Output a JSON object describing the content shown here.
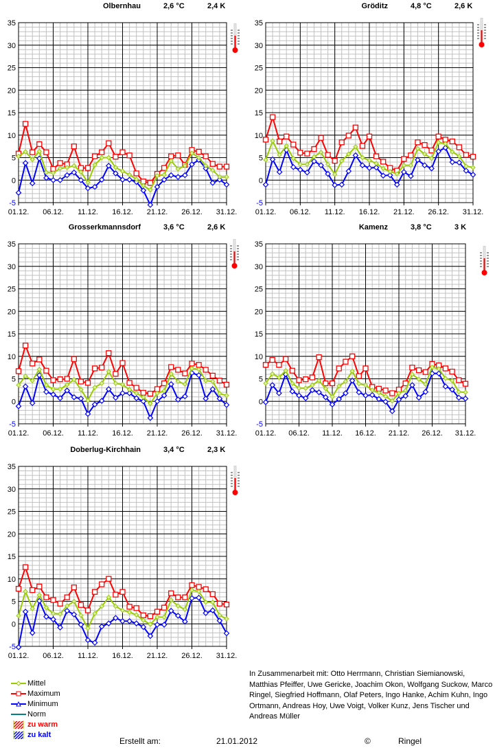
{
  "chart_data": [
    {
      "type": "line",
      "title": "Olbernhau",
      "mean_temp": "2,6 °C",
      "anomaly": "2,4 K",
      "x": [
        "01.12.",
        "02.12.",
        "03.12.",
        "04.12.",
        "05.12.",
        "06.12.",
        "07.12.",
        "08.12.",
        "09.12.",
        "10.12.",
        "11.12.",
        "12.12.",
        "13.12.",
        "14.12.",
        "15.12.",
        "16.12.",
        "17.12.",
        "18.12.",
        "19.12.",
        "20.12.",
        "21.12.",
        "22.12.",
        "23.12.",
        "24.12.",
        "25.12.",
        "26.12.",
        "27.12.",
        "28.12.",
        "29.12.",
        "30.12.",
        "31.12."
      ],
      "xticks": [
        "01.12.",
        "06.12.",
        "11.12.",
        "16.12.",
        "21.12.",
        "26.12.",
        "31.12."
      ],
      "yticks": [
        -5,
        0,
        5,
        10,
        15,
        20,
        25,
        30,
        35
      ],
      "ylim": [
        -5,
        35
      ],
      "grid": true,
      "series": [
        {
          "name": "Maximum",
          "values": [
            5.9,
            12.5,
            6.2,
            8.0,
            6.2,
            2.5,
            3.8,
            3.5,
            7.5,
            2.7,
            2.7,
            5.3,
            6.2,
            8.2,
            5.2,
            6.2,
            5.5,
            1.5,
            -0.3,
            -0.6,
            1.4,
            2.7,
            5.3,
            5.5,
            3.4,
            6.7,
            6.3,
            5.3,
            3.6,
            3.0,
            3.0
          ]
        },
        {
          "name": "Mittel",
          "values": [
            5.3,
            6.3,
            4.6,
            6.4,
            1.7,
            1.6,
            2.6,
            2.8,
            3.2,
            1.8,
            -0.5,
            3.4,
            5.0,
            5.0,
            2.8,
            2.0,
            1.2,
            0.2,
            -1.2,
            -2.2,
            1.0,
            1.2,
            4.3,
            2.5,
            3.2,
            6.0,
            5.0,
            3.2,
            2.2,
            0.7,
            0.7
          ]
        },
        {
          "name": "Minimum",
          "values": [
            -2.8,
            3.8,
            -0.7,
            4.8,
            0.5,
            0.0,
            0.0,
            1.1,
            1.7,
            0.0,
            -1.8,
            -1.5,
            0.1,
            3.2,
            1.5,
            0.1,
            0.1,
            -0.4,
            -2.3,
            -5.5,
            -1.5,
            0.1,
            1.1,
            0.7,
            1.1,
            3.5,
            4.5,
            2.6,
            -0.6,
            0.1,
            -1.0
          ]
        }
      ]
    },
    {
      "type": "line",
      "title": "Gröditz",
      "mean_temp": "4,8 °C",
      "anomaly": "2,6 K",
      "x": [
        "01.12.",
        "02.12.",
        "03.12.",
        "04.12.",
        "05.12.",
        "06.12.",
        "07.12.",
        "08.12.",
        "09.12.",
        "10.12.",
        "11.12.",
        "12.12.",
        "13.12.",
        "14.12.",
        "15.12.",
        "16.12.",
        "17.12.",
        "18.12.",
        "19.12.",
        "20.12.",
        "21.12.",
        "22.12.",
        "23.12.",
        "24.12.",
        "25.12.",
        "26.12.",
        "27.12.",
        "28.12.",
        "29.12.",
        "30.12.",
        "31.12."
      ],
      "xticks": [
        "01.12.",
        "06.12.",
        "11.12.",
        "16.12.",
        "21.12.",
        "26.12.",
        "31.12."
      ],
      "yticks": [
        -5,
        0,
        5,
        10,
        15,
        20,
        25,
        30,
        35
      ],
      "ylim": [
        -5,
        35
      ],
      "grid": true,
      "series": [
        {
          "name": "Maximum",
          "values": [
            9.0,
            14.0,
            8.6,
            9.7,
            7.9,
            6.1,
            5.9,
            6.9,
            9.4,
            5.6,
            4.3,
            8.4,
            9.9,
            11.7,
            7.6,
            9.7,
            5.3,
            4.1,
            2.7,
            2.1,
            4.7,
            5.5,
            8.4,
            7.8,
            6.6,
            9.7,
            9.0,
            8.6,
            7.3,
            5.6,
            5.2
          ]
        },
        {
          "name": "Mittel",
          "values": [
            4.5,
            8.7,
            5.6,
            7.6,
            4.8,
            3.5,
            3.5,
            5.2,
            6.2,
            3.5,
            1.3,
            4.3,
            5.8,
            7.4,
            5.0,
            4.4,
            3.7,
            2.6,
            1.9,
            1.4,
            3.3,
            3.3,
            7.0,
            5.8,
            4.8,
            8.4,
            8.1,
            6.3,
            5.3,
            3.1,
            2.8
          ]
        },
        {
          "name": "Minimum",
          "values": [
            -1.0,
            4.6,
            1.8,
            6.7,
            2.9,
            2.3,
            1.7,
            4.2,
            3.3,
            1.4,
            -1.1,
            -1.0,
            2.0,
            5.5,
            3.3,
            2.7,
            2.8,
            1.0,
            1.1,
            -1.0,
            1.8,
            0.9,
            4.5,
            3.3,
            2.6,
            6.4,
            7.2,
            4.0,
            3.9,
            2.1,
            1.2
          ]
        }
      ]
    },
    {
      "type": "line",
      "title": "Grosserkmannsdorf",
      "mean_temp": "3,6 °C",
      "anomaly": "2,6 K",
      "x": [
        "01.12.",
        "02.12.",
        "03.12.",
        "04.12.",
        "05.12.",
        "06.12.",
        "07.12.",
        "08.12.",
        "09.12.",
        "10.12.",
        "11.12.",
        "12.12.",
        "13.12.",
        "14.12.",
        "15.12.",
        "16.12.",
        "17.12.",
        "18.12.",
        "19.12.",
        "20.12.",
        "21.12.",
        "22.12.",
        "23.12.",
        "24.12.",
        "25.12.",
        "26.12.",
        "27.12.",
        "28.12.",
        "29.12.",
        "30.12.",
        "31.12."
      ],
      "xticks": [
        "01.12.",
        "06.12.",
        "11.12.",
        "16.12.",
        "21.12.",
        "26.12.",
        "31.12."
      ],
      "yticks": [
        -5,
        0,
        5,
        10,
        15,
        20,
        25,
        30,
        35
      ],
      "ylim": [
        -5,
        35
      ],
      "grid": true,
      "series": [
        {
          "name": "Maximum",
          "values": [
            6.7,
            12.4,
            8.4,
            9.3,
            6.8,
            4.7,
            4.9,
            5.0,
            9.4,
            4.4,
            4.1,
            7.3,
            7.5,
            10.7,
            6.1,
            8.5,
            4.1,
            3.0,
            1.9,
            1.7,
            2.7,
            4.0,
            7.6,
            7.0,
            6.2,
            8.4,
            8.1,
            7.0,
            5.7,
            4.6,
            3.7
          ]
        },
        {
          "name": "Mittel",
          "values": [
            3.6,
            5.6,
            4.6,
            7.1,
            3.6,
            2.7,
            2.7,
            3.7,
            4.8,
            2.6,
            0.2,
            3.1,
            4.0,
            6.6,
            4.0,
            3.7,
            2.6,
            1.8,
            0.9,
            -0.5,
            1.8,
            2.3,
            6.1,
            4.4,
            3.8,
            7.3,
            7.1,
            4.6,
            4.4,
            1.7,
            1.3
          ]
        },
        {
          "name": "Minimum",
          "values": [
            -1.1,
            3.3,
            -0.4,
            5.8,
            2.1,
            1.5,
            0.7,
            2.4,
            0.9,
            0.6,
            -2.8,
            -0.7,
            0.1,
            2.7,
            0.8,
            1.8,
            1.8,
            0.7,
            0.0,
            -3.7,
            0.0,
            1.3,
            3.8,
            0.4,
            1.1,
            6.3,
            5.8,
            0.6,
            2.7,
            0.6,
            -0.8
          ]
        }
      ]
    },
    {
      "type": "line",
      "title": "Kamenz",
      "mean_temp": "3,8 °C",
      "anomaly": "3 K",
      "x": [
        "01.12.",
        "02.12.",
        "03.12.",
        "04.12.",
        "05.12.",
        "06.12.",
        "07.12.",
        "08.12.",
        "09.12.",
        "10.12.",
        "11.12.",
        "12.12.",
        "13.12.",
        "14.12.",
        "15.12.",
        "16.12.",
        "17.12.",
        "18.12.",
        "19.12.",
        "20.12.",
        "21.12.",
        "22.12.",
        "23.12.",
        "24.12.",
        "25.12.",
        "26.12.",
        "27.12.",
        "28.12.",
        "29.12.",
        "30.12.",
        "31.12."
      ],
      "xticks": [
        "01.12.",
        "06.12.",
        "11.12.",
        "16.12.",
        "21.12.",
        "26.12.",
        "31.12."
      ],
      "yticks": [
        -5,
        0,
        5,
        10,
        15,
        20,
        25,
        30,
        35
      ],
      "ylim": [
        -5,
        35
      ],
      "grid": true,
      "series": [
        {
          "name": "Maximum",
          "values": [
            8.1,
            9.2,
            8.1,
            9.4,
            6.8,
            4.7,
            4.9,
            5.3,
            9.8,
            4.0,
            4.0,
            7.3,
            8.8,
            10.0,
            5.6,
            7.3,
            3.2,
            2.8,
            2.4,
            1.8,
            2.6,
            4.0,
            7.5,
            6.9,
            6.5,
            8.3,
            8.0,
            7.3,
            6.6,
            4.7,
            3.9
          ]
        },
        {
          "name": "Mittel",
          "values": [
            4.0,
            6.1,
            5.3,
            6.8,
            4.0,
            2.9,
            2.9,
            3.6,
            4.6,
            2.8,
            1.0,
            3.4,
            4.4,
            6.7,
            3.9,
            3.6,
            2.5,
            1.9,
            1.1,
            0.1,
            1.8,
            2.4,
            6.0,
            4.9,
            3.8,
            7.6,
            7.2,
            5.1,
            4.6,
            2.1,
            2.0
          ]
        },
        {
          "name": "Minimum",
          "values": [
            -0.2,
            3.6,
            1.8,
            6.0,
            2.2,
            1.3,
            0.7,
            2.5,
            2.0,
            0.9,
            -0.7,
            0.5,
            1.8,
            4.6,
            2.0,
            1.3,
            1.4,
            0.5,
            -0.1,
            -2.2,
            0.4,
            1.2,
            3.6,
            0.8,
            2.1,
            6.2,
            6.2,
            3.3,
            2.6,
            0.8,
            0.6
          ]
        }
      ]
    },
    {
      "type": "line",
      "title": "Doberlug-Kirchhain",
      "mean_temp": "3,4 °C",
      "anomaly": "2,3 K",
      "x": [
        "01.12.",
        "02.12.",
        "03.12.",
        "04.12.",
        "05.12.",
        "06.12.",
        "07.12.",
        "08.12.",
        "09.12.",
        "10.12.",
        "11.12.",
        "12.12.",
        "13.12.",
        "14.12.",
        "15.12.",
        "16.12.",
        "17.12.",
        "18.12.",
        "19.12.",
        "20.12.",
        "21.12.",
        "22.12.",
        "23.12.",
        "24.12.",
        "25.12.",
        "26.12.",
        "27.12.",
        "28.12.",
        "29.12.",
        "30.12.",
        "31.12."
      ],
      "xticks": [
        "01.12.",
        "06.12.",
        "11.12.",
        "16.12.",
        "21.12.",
        "26.12.",
        "31.12."
      ],
      "yticks": [
        -5,
        0,
        5,
        10,
        15,
        20,
        25,
        30,
        35
      ],
      "ylim": [
        -5,
        35
      ],
      "grid": true,
      "series": [
        {
          "name": "Maximum",
          "values": [
            7.8,
            12.6,
            7.5,
            8.3,
            5.9,
            5.3,
            4.5,
            5.9,
            8.1,
            4.2,
            3.0,
            7.1,
            8.8,
            10.0,
            6.5,
            7.1,
            3.8,
            3.5,
            1.9,
            1.7,
            2.7,
            3.6,
            6.8,
            5.9,
            5.9,
            8.6,
            8.2,
            7.7,
            6.6,
            4.5,
            4.3
          ]
        },
        {
          "name": "Mittel",
          "values": [
            1.8,
            7.2,
            3.4,
            6.4,
            3.6,
            2.3,
            2.2,
            4.0,
            5.0,
            1.9,
            -1.0,
            2.3,
            3.9,
            5.9,
            3.9,
            3.0,
            2.6,
            2.0,
            0.8,
            -0.1,
            1.5,
            1.5,
            5.3,
            4.0,
            3.2,
            7.5,
            7.2,
            4.8,
            4.8,
            1.9,
            1.1
          ]
        },
        {
          "name": "Minimum",
          "values": [
            -5.2,
            2.7,
            -2.0,
            5.1,
            1.6,
            1.0,
            -0.8,
            2.9,
            2.1,
            -0.2,
            -3.6,
            -4.2,
            -0.6,
            0.1,
            1.3,
            0.6,
            0.6,
            0.1,
            -0.7,
            -2.7,
            -0.2,
            -0.2,
            2.9,
            1.8,
            0.5,
            5.7,
            5.8,
            2.4,
            3.0,
            0.7,
            -2.1
          ]
        }
      ]
    }
  ],
  "legend": {
    "items": [
      {
        "label": "Mittel",
        "color": "#99cc00",
        "marker": "diamond"
      },
      {
        "label": "Maximum",
        "color": "#ff0000",
        "marker": "square"
      },
      {
        "label": "Minimum",
        "color": "#0000ff",
        "marker": "triangle"
      },
      {
        "label": "Norm",
        "color": "#008080",
        "marker": "none"
      },
      {
        "label": "zu  warm",
        "color": "#ff0000",
        "marker": "hatch"
      },
      {
        "label": "zu  kalt",
        "color": "#0000ff",
        "marker": "hatch"
      }
    ]
  },
  "credits": {
    "text": "In Zusammenarbeit mit: Otto Herrmann, Christian Siemianowski, Matthias Pfeiffer, Uwe Gericke, Joachim Okon,  Wolfgang Suckow, Marco Ringel, Siegfried Hoffmann, Olaf Peters, Ingo Hanke, Achim Kuhn, Ingo Ortmann, Andreas Hoy, Uwe Voigt, Volker Kunz, Jens Tischer und Andreas Müller"
  },
  "footer": {
    "created_label": "Erstellt am:",
    "created_date": "21.01.2012",
    "copyright_symbol": "©",
    "author": "Ringel"
  },
  "icons": {
    "thermometer": "thermometer-icon"
  }
}
